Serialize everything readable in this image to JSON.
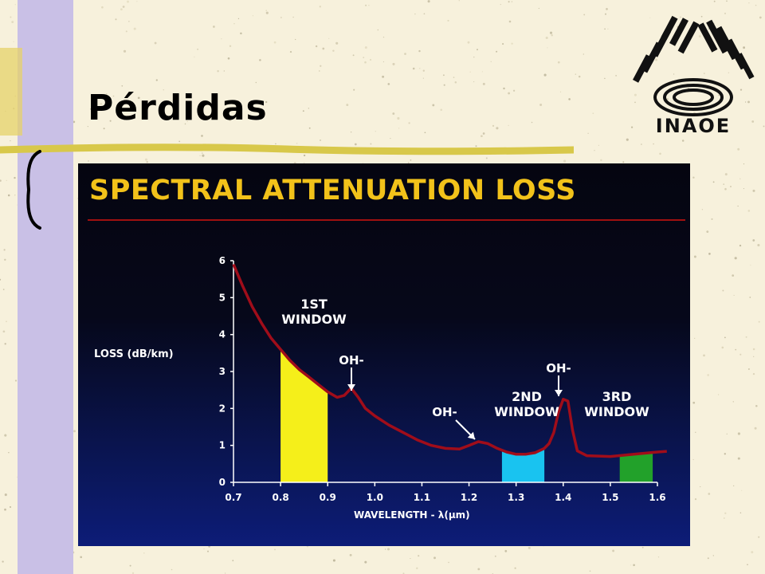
{
  "slide": {
    "title": "Pérdidas",
    "logo_text": "INAOE"
  },
  "colors": {
    "background": "#f7f1dc",
    "sidebar": "#c9c0e6",
    "title_rule": "#d8c84a",
    "heading": "#f2c21a",
    "curve": "#a00d1a",
    "window1": "#f5ef1a",
    "window2": "#19c3f0",
    "window3": "#22a12a"
  },
  "chart_data": {
    "type": "line",
    "title": "SPECTRAL ATTENUATION LOSS",
    "ylabel": "LOSS (dB/km)",
    "xlabel": "WAVELENGTH - λ(μm)",
    "xlim": [
      0.7,
      1.6
    ],
    "ylim": [
      0,
      6
    ],
    "x_ticks": [
      0.7,
      0.8,
      0.9,
      1.0,
      1.1,
      1.2,
      1.3,
      1.4,
      1.5,
      1.6
    ],
    "x_tick_labels": [
      "0.7",
      "0.8",
      "0.9",
      "1.0",
      "1.1",
      "1.2",
      "1.3",
      "1.4",
      "1.5",
      "1.6"
    ],
    "y_ticks": [
      0,
      1,
      2,
      3,
      4,
      5,
      6
    ],
    "y_tick_labels": [
      "0",
      "1",
      "2",
      "3",
      "4",
      "5",
      "6"
    ],
    "series": [
      {
        "x": [
          0.7,
          0.72,
          0.74,
          0.76,
          0.78,
          0.8,
          0.82,
          0.84,
          0.86,
          0.88,
          0.9,
          0.92,
          0.935,
          0.95,
          0.965,
          0.98,
          1.0,
          1.03,
          1.06,
          1.09,
          1.12,
          1.15,
          1.18,
          1.2,
          1.22,
          1.24,
          1.26,
          1.28,
          1.3,
          1.32,
          1.34,
          1.36,
          1.37,
          1.38,
          1.39,
          1.4,
          1.41,
          1.42,
          1.43,
          1.45,
          1.5,
          1.55,
          1.6,
          1.62
        ],
        "y": [
          5.9,
          5.3,
          4.75,
          4.3,
          3.9,
          3.6,
          3.3,
          3.05,
          2.85,
          2.65,
          2.45,
          2.3,
          2.35,
          2.55,
          2.3,
          2.0,
          1.8,
          1.55,
          1.35,
          1.15,
          1.0,
          0.92,
          0.9,
          1.0,
          1.1,
          1.05,
          0.92,
          0.82,
          0.76,
          0.76,
          0.8,
          0.92,
          1.05,
          1.35,
          1.9,
          2.25,
          2.2,
          1.4,
          0.85,
          0.72,
          0.7,
          0.76,
          0.82,
          0.84
        ]
      }
    ],
    "windows": [
      {
        "label_lines": [
          "1ST",
          "WINDOW"
        ],
        "x_start": 0.8,
        "x_end": 0.9
      },
      {
        "label_lines": [
          "2ND",
          "WINDOW"
        ],
        "x_start": 1.27,
        "x_end": 1.36
      },
      {
        "label_lines": [
          "3RD",
          "WINDOW"
        ],
        "x_start": 1.52,
        "x_end": 1.59
      }
    ],
    "annotations": [
      {
        "text": "OH-",
        "x": 0.95,
        "y": 2.55
      },
      {
        "text": "OH-",
        "x": 1.23,
        "y": 1.1
      },
      {
        "text": "OH-",
        "x": 1.4,
        "y": 2.3
      }
    ]
  }
}
